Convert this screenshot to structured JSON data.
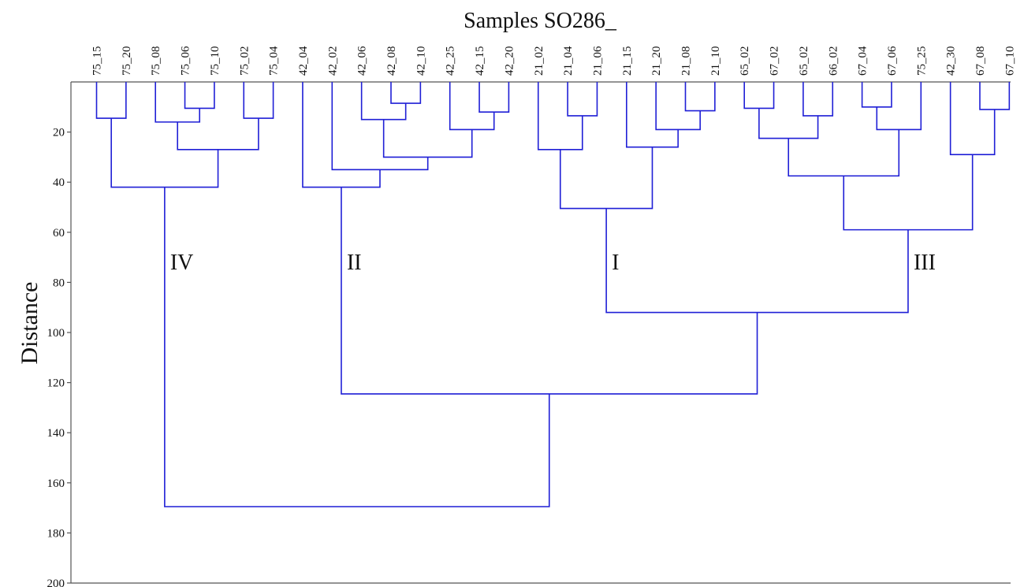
{
  "chart_data": {
    "type": "dendrogram",
    "title": "Samples SO286_",
    "xlabel": "",
    "ylabel": "Distance",
    "ylim": [
      0,
      200
    ],
    "y_ticks": [
      20,
      40,
      60,
      80,
      100,
      120,
      140,
      160,
      180,
      200
    ],
    "line_color": "#1f1fd6",
    "leaves": [
      "75_15",
      "75_20",
      "75_08",
      "75_06",
      "75_10",
      "75_02",
      "75_04",
      "42_04",
      "42_02",
      "42_06",
      "42_08",
      "42_10",
      "42_25",
      "42_15",
      "42_20",
      "21_02",
      "21_04",
      "21_06",
      "21_15",
      "21_20",
      "21_08",
      "21_10",
      "65_02",
      "67_02",
      "65_02",
      "66_02",
      "67_04",
      "67_06",
      "75_25",
      "42_30",
      "67_08",
      "67_10"
    ],
    "merges": [
      {
        "id": "a1",
        "children": [
          "L0",
          "L1"
        ],
        "height": 14.5
      },
      {
        "id": "a2",
        "children": [
          "L3",
          "L4"
        ],
        "height": 10.5
      },
      {
        "id": "a3",
        "children": [
          "L2",
          "a2"
        ],
        "height": 16
      },
      {
        "id": "a4",
        "children": [
          "L5",
          "L6"
        ],
        "height": 14.5
      },
      {
        "id": "a5",
        "children": [
          "a3",
          "a4"
        ],
        "height": 27
      },
      {
        "id": "a6",
        "children": [
          "a1",
          "a5"
        ],
        "height": 42
      },
      {
        "id": "b1",
        "children": [
          "L10",
          "L11"
        ],
        "height": 8.5
      },
      {
        "id": "b2",
        "children": [
          "L9",
          "b1"
        ],
        "height": 15
      },
      {
        "id": "b3",
        "children": [
          "L13",
          "L14"
        ],
        "height": 12
      },
      {
        "id": "b4",
        "children": [
          "L12",
          "b3"
        ],
        "height": 19
      },
      {
        "id": "b5",
        "children": [
          "b2",
          "b4"
        ],
        "height": 30
      },
      {
        "id": "b6",
        "children": [
          "L8",
          "b5"
        ],
        "height": 35
      },
      {
        "id": "b7",
        "children": [
          "L7",
          "b6"
        ],
        "height": 42
      },
      {
        "id": "c1",
        "children": [
          "L16",
          "L17"
        ],
        "height": 13.5
      },
      {
        "id": "c2",
        "children": [
          "L15",
          "c1"
        ],
        "height": 27
      },
      {
        "id": "c3",
        "children": [
          "L20",
          "L21"
        ],
        "height": 11.5
      },
      {
        "id": "c4",
        "children": [
          "L19",
          "c3"
        ],
        "height": 19
      },
      {
        "id": "c5",
        "children": [
          "L18",
          "c4"
        ],
        "height": 26
      },
      {
        "id": "c6",
        "children": [
          "c2",
          "c5"
        ],
        "height": 50.5
      },
      {
        "id": "d1",
        "children": [
          "L22",
          "L23"
        ],
        "height": 10.5
      },
      {
        "id": "d2",
        "children": [
          "L24",
          "L25"
        ],
        "height": 13.5
      },
      {
        "id": "d3",
        "children": [
          "d1",
          "d2"
        ],
        "height": 22.5
      },
      {
        "id": "d4",
        "children": [
          "L26",
          "L27"
        ],
        "height": 10
      },
      {
        "id": "d5",
        "children": [
          "d4",
          "L28"
        ],
        "height": 19
      },
      {
        "id": "d6",
        "children": [
          "d3",
          "d5"
        ],
        "height": 37.5
      },
      {
        "id": "d7",
        "children": [
          "L30",
          "L31"
        ],
        "height": 11
      },
      {
        "id": "d8",
        "children": [
          "L29",
          "d7"
        ],
        "height": 29
      },
      {
        "id": "d9",
        "children": [
          "d6",
          "d8"
        ],
        "height": 59
      },
      {
        "id": "e1",
        "children": [
          "c6",
          "d9"
        ],
        "height": 92
      },
      {
        "id": "e2",
        "children": [
          "b7",
          "e1"
        ],
        "height": 124.5
      },
      {
        "id": "e3",
        "children": [
          "a6",
          "e2"
        ],
        "height": 169.5
      }
    ],
    "cluster_labels": [
      {
        "text": "IV",
        "node": "a6"
      },
      {
        "text": "II",
        "node": "b7"
      },
      {
        "text": "I",
        "node": "c6"
      },
      {
        "text": "III",
        "node": "d9"
      }
    ]
  }
}
